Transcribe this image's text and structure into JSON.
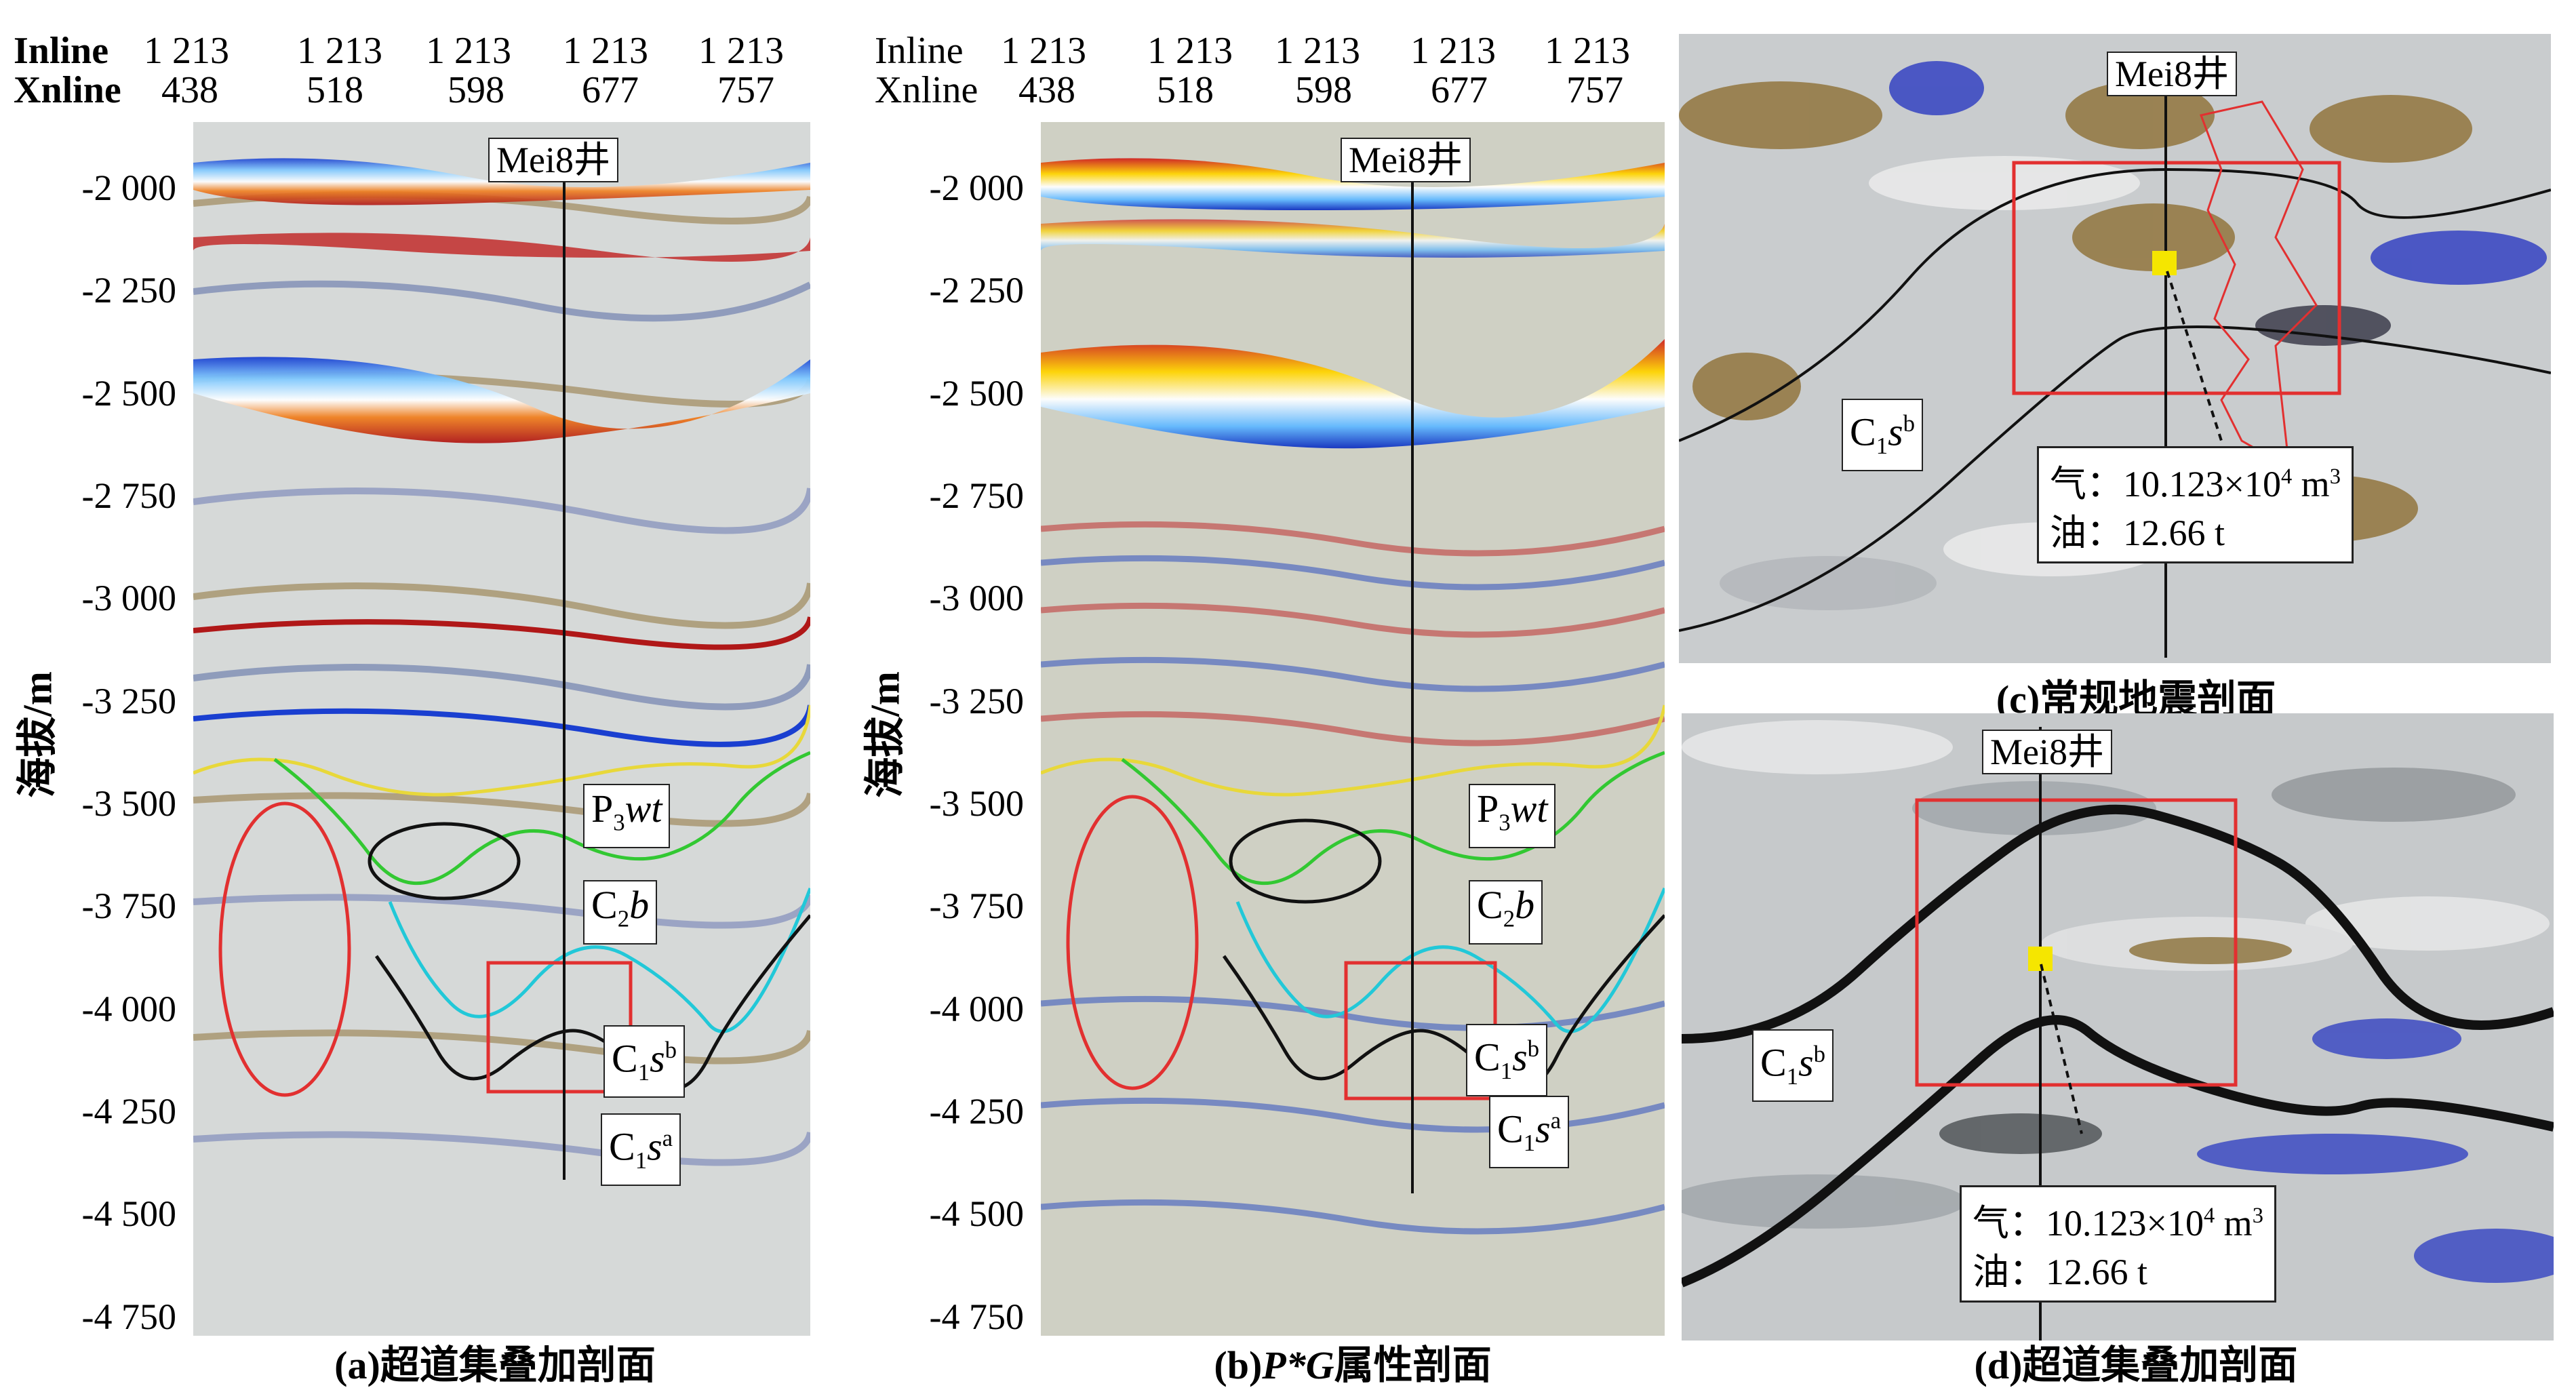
{
  "panel_a": {
    "inline_label": "Inline",
    "xnline_label": "Xnline",
    "inlines": [
      "1 213",
      "1 213",
      "1 213",
      "1 213",
      "1 213"
    ],
    "xnline_first": "438",
    "xnlines": [
      "518",
      "598",
      "677",
      "757"
    ],
    "well": "Mei8井",
    "yticks": [
      "-2 000",
      "-2 250",
      "-2 500",
      "-2 750",
      "-3 000",
      "-3 250",
      "-3 500",
      "-3 750",
      "-4 000",
      "-4 250",
      "-4 500",
      "-4 750"
    ],
    "ylabel": "海拔/m",
    "caption": "(a)超道集叠加剖面",
    "horizons": {
      "p3": "P",
      "p3_sub": "3",
      "p3_it": "wt",
      "c2": "C",
      "c2_sub": "2",
      "c2_it": "b",
      "c1b": "C",
      "c1b_sub": "1",
      "c1b_it": "s",
      "c1b_sup": "b",
      "c1a": "C",
      "c1a_sub": "1",
      "c1a_it": "s",
      "c1a_sup": "a"
    }
  },
  "panel_b": {
    "inline_label": "Inline",
    "xnline_label": "Xnline",
    "inlines": [
      "1 213",
      "1 213",
      "1 213",
      "1 213",
      "1 213"
    ],
    "xnline_first": "438",
    "xnlines": [
      "518",
      "598",
      "677",
      "757"
    ],
    "well": "Mei8井",
    "yticks": [
      "-2 000",
      "-2 250",
      "-2 500",
      "-2 750",
      "-3 000",
      "-3 250",
      "-3 500",
      "-3 750",
      "-4 000",
      "-4 250",
      "-4 500",
      "-4 750"
    ],
    "ylabel": "海拔/m",
    "caption_pre": "(b)",
    "caption_it": "P*G",
    "caption_post": "属性剖面"
  },
  "panel_c": {
    "well": "Mei8井",
    "formation": "C",
    "formation_sub": "1",
    "formation_it": "s",
    "formation_sup": "b",
    "gas_label": "气：",
    "gas_value": "10.123×10",
    "gas_exp": "4",
    "gas_unit": " m",
    "gas_unit_exp": "3",
    "oil_label": "油：",
    "oil_value": "12.66 t",
    "caption": "(c)常规地震剖面"
  },
  "panel_d": {
    "well": "Mei8井",
    "formation": "C",
    "formation_sub": "1",
    "formation_it": "s",
    "formation_sup": "b",
    "gas_label": "气：",
    "gas_value": "10.123×10",
    "gas_exp": "4",
    "gas_unit": " m",
    "gas_unit_exp": "3",
    "oil_label": "油：",
    "oil_value": "12.66 t",
    "caption": "(d)超道集叠加剖面"
  },
  "colors": {
    "horizon_yellow": "#e8d83a",
    "horizon_green": "#32c832",
    "horizon_cyan": "#22c8d8",
    "horizon_black": "#111111",
    "anomaly_red": "#e23030",
    "marker_yellow": "#f5e600"
  }
}
